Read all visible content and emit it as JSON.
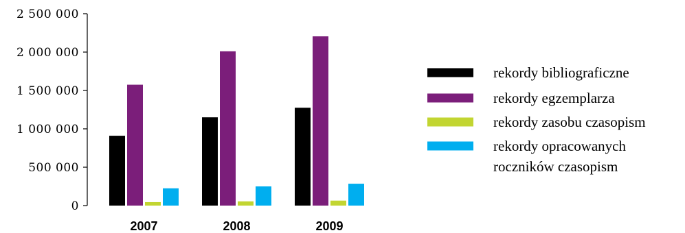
{
  "chart_data": {
    "type": "bar",
    "categories": [
      "2007",
      "2008",
      "2009"
    ],
    "series": [
      {
        "name": "rekordy bibliograficzne",
        "color": "#000000",
        "values": [
          910000,
          1150000,
          1275000
        ]
      },
      {
        "name": "rekordy egzemplarza",
        "color": "#7b1e7a",
        "values": [
          1575000,
          2010000,
          2205000
        ]
      },
      {
        "name": "rekordy zasobu czasopism",
        "color": "#c2d531",
        "values": [
          45000,
          55000,
          65000
        ]
      },
      {
        "name": "rekordy opracowanych roczników czasopism",
        "color": "#00aeef",
        "values": [
          225000,
          250000,
          285000
        ]
      }
    ],
    "ylim": [
      0,
      2500000
    ],
    "yticks": [
      0,
      500000,
      1000000,
      1500000,
      2000000,
      2500000
    ],
    "ytick_labels": [
      "0",
      "500 000",
      "1 000 000",
      "1 500 000",
      "2 000 000",
      "2 500 000"
    ],
    "legend": {
      "placement": "right",
      "entries": [
        {
          "lines": [
            "rekordy bibliograficzne"
          ]
        },
        {
          "lines": [
            "rekordy egzemplarza"
          ]
        },
        {
          "lines": [
            "rekordy zasobu czasopism"
          ]
        },
        {
          "lines": [
            "rekordy opracowanych",
            "roczników czasopism"
          ]
        }
      ]
    },
    "title": "",
    "xlabel": "",
    "ylabel": "",
    "grid": false
  }
}
